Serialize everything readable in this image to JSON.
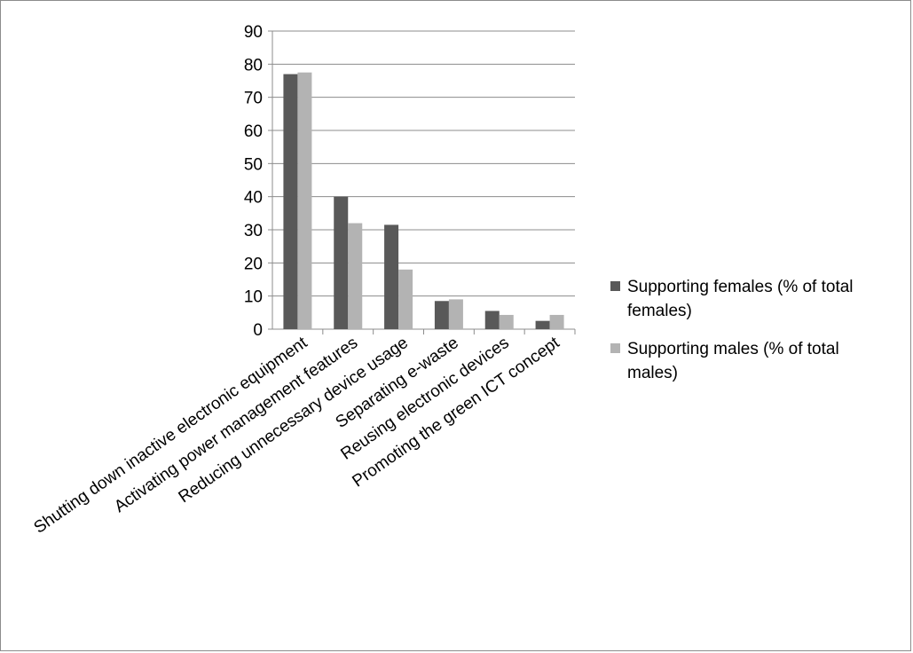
{
  "chart_data": {
    "type": "bar",
    "categories": [
      "Shutting down inactive electronic equipment",
      "Activating power management features",
      "Reducing unnecessary device usage",
      "Separating e-waste",
      "Reusing electronic devices",
      "Promoting the green ICT concept"
    ],
    "series": [
      {
        "name": "Supporting females (% of total females)",
        "legend_lines": [
          "Supporting females (% of total",
          "females)"
        ],
        "color": "#595959",
        "values": [
          77,
          40,
          31.5,
          8.5,
          5.5,
          2.5
        ]
      },
      {
        "name": "Supporting males (% of total males)",
        "legend_lines": [
          "Supporting males (% of total",
          "males)"
        ],
        "color": "#b3b3b3",
        "values": [
          77.5,
          32,
          18,
          9,
          4.3,
          4.3
        ]
      }
    ],
    "ylim": [
      0,
      90
    ],
    "yticks": [
      "0",
      "10",
      "20",
      "30",
      "40",
      "50",
      "60",
      "70",
      "80",
      "90"
    ],
    "grid": true,
    "legend_position": "right",
    "title": "",
    "xlabel": "",
    "ylabel": ""
  }
}
